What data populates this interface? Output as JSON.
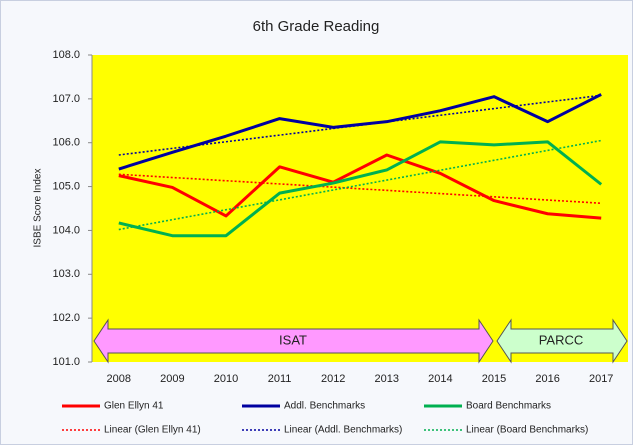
{
  "chart_data": {
    "type": "line",
    "title": "6th Grade Reading",
    "y_label": "ISBE Score Index",
    "categories": [
      "2008",
      "2009",
      "2010",
      "2011",
      "2012",
      "2013",
      "2014",
      "2015",
      "2016",
      "2017"
    ],
    "series": [
      {
        "name": "Glen Ellyn 41",
        "color": "#ff0000",
        "values": [
          105.25,
          104.98,
          104.33,
          105.45,
          105.1,
          105.72,
          105.3,
          104.68,
          104.38,
          104.28
        ],
        "trend_name": "Linear (Glen Ellyn 41)",
        "trend": [
          105.28,
          104.62
        ]
      },
      {
        "name": "Addl. Benchmarks",
        "color": "#0000a0",
        "values": [
          105.4,
          105.78,
          106.15,
          106.55,
          106.35,
          106.48,
          106.73,
          107.05,
          106.48,
          107.1
        ],
        "trend_name": "Linear (Addl. Benchmarks)",
        "trend": [
          105.72,
          107.08
        ]
      },
      {
        "name": "Board Benchmarks",
        "color": "#00b050",
        "values": [
          104.17,
          103.88,
          103.88,
          104.85,
          105.08,
          105.38,
          106.02,
          105.95,
          106.02,
          105.05
        ],
        "trend_name": "Linear (Board Benchmarks)",
        "trend": [
          104.02,
          106.05
        ]
      }
    ],
    "ylim": [
      101,
      108
    ],
    "yticks": [
      {
        "value": 101,
        "label": "101.0"
      },
      {
        "value": 102,
        "label": "102.0"
      },
      {
        "value": 103,
        "label": "103.0"
      },
      {
        "value": 104,
        "label": "104.0"
      },
      {
        "value": 105,
        "label": "105.0"
      },
      {
        "value": 106,
        "label": "106.0"
      },
      {
        "value": 107,
        "label": "107.0"
      },
      {
        "value": 108,
        "label": "108.0"
      }
    ],
    "plot_color": "#ffff00",
    "annotations": [
      {
        "text": "ISAT",
        "color": "#ff99ff"
      },
      {
        "text": "PARCC",
        "color": "#ccffcc"
      }
    ]
  }
}
